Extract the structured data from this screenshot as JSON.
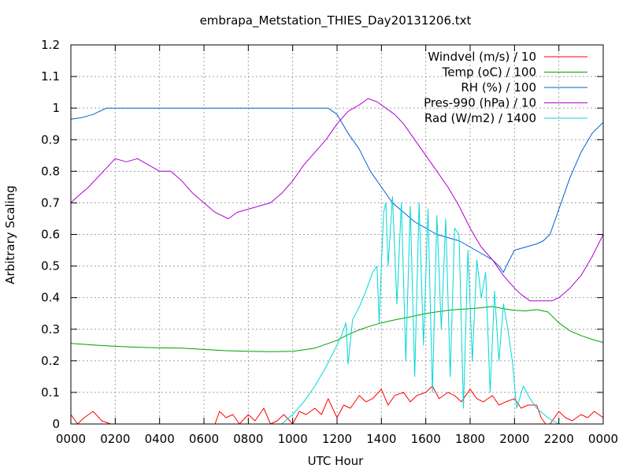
{
  "chart_data": {
    "type": "line",
    "title": "embrapa_Metstation_THIES_Day20131206.txt",
    "xlabel": "UTC Hour",
    "ylabel": "Arbitrary Scaling",
    "xlim": [
      0,
      24
    ],
    "ylim": [
      0,
      1.2
    ],
    "grid": true,
    "legend": "top-right",
    "x_ticks": [
      0,
      2,
      4,
      6,
      8,
      10,
      12,
      14,
      16,
      18,
      20,
      22,
      24
    ],
    "x_tick_labels": [
      "0000",
      "0200",
      "0400",
      "0600",
      "0800",
      "1000",
      "1200",
      "1400",
      "1600",
      "1800",
      "2000",
      "2200",
      "0000"
    ],
    "y_ticks": [
      0,
      0.1,
      0.2,
      0.3,
      0.4,
      0.5,
      0.6,
      0.7,
      0.8,
      0.9,
      1,
      1.1,
      1.2
    ],
    "y_tick_labels": [
      "0",
      "0.1",
      "0.2",
      "0.3",
      "0.4",
      "0.5",
      "0.6",
      "0.7",
      "0.8",
      "0.9",
      "1",
      "1.1",
      "1.2"
    ],
    "series": [
      {
        "name": "Windvel (m/s) / 10",
        "color": "#ff0000",
        "x": [
          0,
          0.3,
          0.6,
          1.0,
          1.4,
          1.8,
          2.5,
          3.5,
          4.5,
          5.5,
          6.5,
          6.7,
          7.0,
          7.3,
          7.6,
          8.0,
          8.3,
          8.7,
          9.0,
          9.3,
          9.6,
          10.0,
          10.3,
          10.6,
          11.0,
          11.3,
          11.6,
          12.0,
          12.3,
          12.6,
          13.0,
          13.3,
          13.6,
          14.0,
          14.3,
          14.6,
          15.0,
          15.3,
          15.6,
          16.0,
          16.3,
          16.6,
          17.0,
          17.3,
          17.6,
          18.0,
          18.3,
          18.6,
          19.0,
          19.3,
          19.6,
          20.0,
          20.3,
          20.6,
          21.0,
          21.2,
          21.4,
          21.6,
          22.0,
          22.3,
          22.6,
          23.0,
          23.3,
          23.6,
          24.0
        ],
        "y": [
          0.03,
          0.0,
          0.02,
          0.04,
          0.01,
          0.0,
          0.0,
          0.0,
          0.0,
          0.0,
          0.0,
          0.04,
          0.02,
          0.03,
          0.0,
          0.03,
          0.01,
          0.05,
          0.0,
          0.01,
          0.03,
          0.0,
          0.04,
          0.03,
          0.05,
          0.03,
          0.08,
          0.02,
          0.06,
          0.05,
          0.09,
          0.07,
          0.08,
          0.11,
          0.06,
          0.09,
          0.1,
          0.07,
          0.09,
          0.1,
          0.12,
          0.08,
          0.1,
          0.09,
          0.07,
          0.11,
          0.08,
          0.07,
          0.09,
          0.06,
          0.07,
          0.08,
          0.05,
          0.06,
          0.06,
          0.02,
          0.0,
          0.0,
          0.04,
          0.02,
          0.01,
          0.03,
          0.02,
          0.04,
          0.02
        ]
      },
      {
        "name": "Temp (oC) / 100",
        "color": "#00a000",
        "x": [
          0,
          1,
          2,
          3,
          4,
          5,
          6,
          7,
          8,
          9,
          10,
          11,
          12,
          12.5,
          13,
          13.5,
          14,
          14.5,
          15,
          15.5,
          16,
          16.5,
          17,
          17.5,
          18,
          18.5,
          19,
          19.5,
          20,
          20.5,
          21,
          21.5,
          22,
          22.5,
          23,
          23.5,
          24
        ],
        "y": [
          0.255,
          0.25,
          0.246,
          0.243,
          0.241,
          0.24,
          0.236,
          0.232,
          0.23,
          0.229,
          0.23,
          0.24,
          0.265,
          0.283,
          0.298,
          0.31,
          0.32,
          0.328,
          0.335,
          0.342,
          0.35,
          0.355,
          0.36,
          0.363,
          0.365,
          0.368,
          0.372,
          0.365,
          0.36,
          0.358,
          0.362,
          0.355,
          0.32,
          0.295,
          0.28,
          0.268,
          0.258
        ]
      },
      {
        "name": "RH (%) / 100",
        "color": "#0060d0",
        "x": [
          0,
          0.5,
          1,
          1.3,
          1.6,
          2,
          4,
          6,
          8,
          10,
          11.6,
          12,
          12.5,
          13,
          13.5,
          14,
          14.5,
          15,
          15.5,
          16,
          16.5,
          17,
          17.5,
          18,
          18.5,
          19,
          19.3,
          19.5,
          19.7,
          20,
          20.5,
          21,
          21.3,
          21.6,
          22,
          22.5,
          23,
          23.5,
          24
        ],
        "y": [
          0.965,
          0.97,
          0.98,
          0.99,
          1.0,
          1.0,
          1.0,
          1.0,
          1.0,
          1.0,
          1.0,
          0.98,
          0.92,
          0.87,
          0.8,
          0.75,
          0.7,
          0.67,
          0.64,
          0.62,
          0.6,
          0.59,
          0.58,
          0.56,
          0.54,
          0.52,
          0.5,
          0.48,
          0.51,
          0.55,
          0.56,
          0.57,
          0.58,
          0.6,
          0.68,
          0.78,
          0.86,
          0.92,
          0.955
        ]
      },
      {
        "name": "Pres-990 (hPa) / 10",
        "color": "#b000d0",
        "x": [
          0,
          0.3,
          0.8,
          1.2,
          1.6,
          2.0,
          2.5,
          3.0,
          3.5,
          4.0,
          4.5,
          5.0,
          5.5,
          6.0,
          6.5,
          6.8,
          7.1,
          7.5,
          8.0,
          8.5,
          9.0,
          9.5,
          10.0,
          10.5,
          11.0,
          11.5,
          12.0,
          12.5,
          13.0,
          13.4,
          13.8,
          14.2,
          14.6,
          15.0,
          15.5,
          16.0,
          16.5,
          17.0,
          17.5,
          18.0,
          18.5,
          19.0,
          19.5,
          20.0,
          20.3,
          20.7,
          21.0,
          21.4,
          21.7,
          22.0,
          22.5,
          23.0,
          23.5,
          24.0
        ],
        "y": [
          0.7,
          0.72,
          0.75,
          0.78,
          0.81,
          0.84,
          0.83,
          0.84,
          0.82,
          0.8,
          0.8,
          0.77,
          0.73,
          0.7,
          0.67,
          0.66,
          0.65,
          0.67,
          0.68,
          0.69,
          0.7,
          0.73,
          0.77,
          0.82,
          0.86,
          0.9,
          0.95,
          0.99,
          1.01,
          1.03,
          1.02,
          1.0,
          0.98,
          0.95,
          0.9,
          0.85,
          0.8,
          0.75,
          0.69,
          0.62,
          0.56,
          0.52,
          0.47,
          0.43,
          0.41,
          0.39,
          0.39,
          0.39,
          0.39,
          0.4,
          0.43,
          0.47,
          0.53,
          0.6
        ]
      },
      {
        "name": "Rad (W/m2) / 1400",
        "color": "#00d8d8",
        "x": [
          0,
          2,
          4,
          6,
          8,
          9.5,
          10.0,
          10.5,
          11.0,
          11.5,
          12.0,
          12.2,
          12.4,
          12.5,
          12.7,
          13.0,
          13.3,
          13.6,
          13.8,
          13.9,
          14.0,
          14.1,
          14.2,
          14.3,
          14.5,
          14.7,
          14.9,
          15.1,
          15.3,
          15.5,
          15.7,
          15.9,
          16.1,
          16.3,
          16.5,
          16.7,
          16.9,
          17.1,
          17.3,
          17.5,
          17.7,
          17.9,
          18.1,
          18.3,
          18.5,
          18.7,
          18.9,
          19.1,
          19.3,
          19.5,
          19.7,
          19.9,
          20.1,
          20.4,
          20.7,
          21.0,
          21.5,
          22.0,
          24.0
        ],
        "y": [
          0,
          0,
          0,
          0,
          0,
          0,
          0.03,
          0.07,
          0.12,
          0.18,
          0.25,
          0.28,
          0.32,
          0.19,
          0.33,
          0.37,
          0.42,
          0.48,
          0.5,
          0.32,
          0.5,
          0.67,
          0.7,
          0.5,
          0.72,
          0.38,
          0.7,
          0.2,
          0.69,
          0.15,
          0.7,
          0.25,
          0.68,
          0.1,
          0.66,
          0.3,
          0.65,
          0.15,
          0.62,
          0.6,
          0.05,
          0.55,
          0.2,
          0.52,
          0.4,
          0.48,
          0.1,
          0.42,
          0.2,
          0.38,
          0.3,
          0.2,
          0.05,
          0.12,
          0.08,
          0.05,
          0.02,
          0.0,
          0
        ]
      }
    ]
  }
}
